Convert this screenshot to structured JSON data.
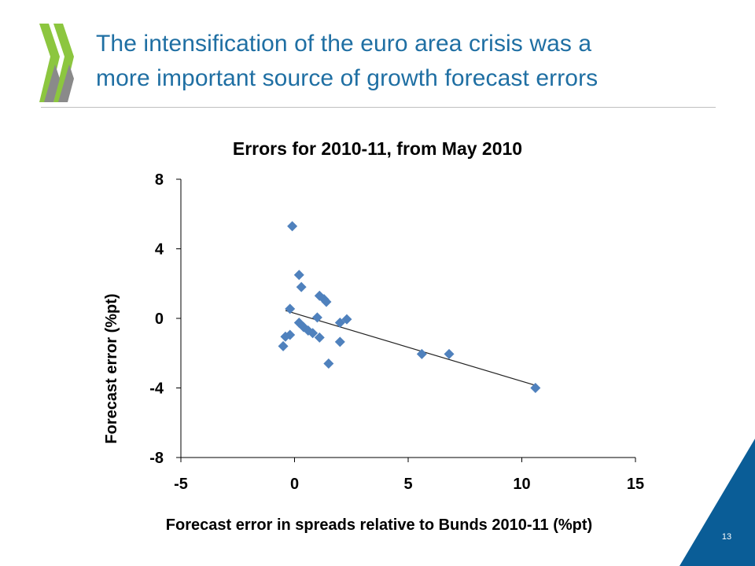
{
  "slide": {
    "title": "The intensification of the euro area crisis was a\nmore important source of growth forecast errors",
    "page_number": "13",
    "colors": {
      "title": "#1f6fa3",
      "logo_green": "#8cc63f",
      "logo_gray": "#8a8a8a",
      "corner": "#0a5d97",
      "marker": "#4f81bd"
    }
  },
  "icons": {
    "logo": "oecd-chevrons-logo"
  },
  "chart_data": {
    "type": "scatter",
    "title": "Errors for 2010-11, from May 2010",
    "xlabel": "Forecast error in spreads relative to Bunds 2010-11  (%pt)",
    "ylabel": "Forecast error (%pt)",
    "xlim": [
      -5,
      15
    ],
    "ylim": [
      -8,
      8
    ],
    "xticks": [
      -5,
      0,
      5,
      10,
      15
    ],
    "yticks": [
      -8,
      -4,
      0,
      4,
      8
    ],
    "grid": false,
    "points": [
      {
        "x": -0.1,
        "y": 5.3
      },
      {
        "x": 0.2,
        "y": 2.5
      },
      {
        "x": 0.3,
        "y": 1.8
      },
      {
        "x": 1.1,
        "y": 1.3
      },
      {
        "x": 1.3,
        "y": 1.1
      },
      {
        "x": 1.4,
        "y": 0.95
      },
      {
        "x": -0.2,
        "y": 0.55
      },
      {
        "x": 1.0,
        "y": 0.05
      },
      {
        "x": 2.3,
        "y": -0.05
      },
      {
        "x": 2.0,
        "y": -0.25
      },
      {
        "x": 0.2,
        "y": -0.25
      },
      {
        "x": 0.4,
        "y": -0.5
      },
      {
        "x": 0.6,
        "y": -0.7
      },
      {
        "x": 0.8,
        "y": -0.85
      },
      {
        "x": -0.2,
        "y": -0.95
      },
      {
        "x": -0.4,
        "y": -1.05
      },
      {
        "x": 1.1,
        "y": -1.1
      },
      {
        "x": 2.0,
        "y": -1.35
      },
      {
        "x": -0.5,
        "y": -1.6
      },
      {
        "x": 1.5,
        "y": -2.6
      },
      {
        "x": 5.6,
        "y": -2.05
      },
      {
        "x": 6.8,
        "y": -2.05
      },
      {
        "x": 10.6,
        "y": -4.0
      }
    ],
    "trendline": {
      "x": [
        -0.4,
        10.6
      ],
      "y": [
        0.45,
        -3.85
      ]
    }
  }
}
